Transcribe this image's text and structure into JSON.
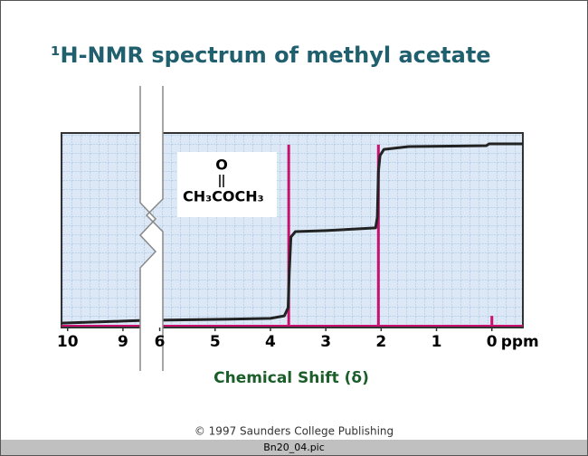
{
  "chart_data": {
    "type": "nmr",
    "title": "¹H-NMR spectrum of methyl acetate",
    "x_label": "Chemical Shift (δ)",
    "x_unit": "ppm",
    "annotation": {
      "top": "O",
      "formula": "CH₃COCH₃"
    },
    "xlim": [
      [
        10.11,
        8.58
      ],
      [
        6.13,
        -0.56
      ]
    ],
    "xticks": [
      10,
      9,
      6,
      5,
      4,
      3,
      2,
      1,
      0
    ],
    "ylim": [
      0,
      100
    ],
    "spectrum": {
      "color": "#c8106e",
      "x": [
        3.67,
        2.05,
        0
      ],
      "values": [
        94,
        94,
        6
      ]
    },
    "integral": {
      "color": "#222222",
      "x": [
        10.11,
        9.0,
        8.58,
        6.13,
        5.0,
        4.0,
        3.75,
        3.68,
        3.66,
        3.63,
        3.55,
        3.0,
        2.1,
        2.07,
        2.05,
        2.02,
        1.95,
        1.5,
        0.1,
        0.05,
        -0.56
      ],
      "values": [
        2.3,
        3.3,
        3.7,
        3.7,
        4.2,
        4.7,
        6,
        10.2,
        28.8,
        46.5,
        49.3,
        49.8,
        51.2,
        56.7,
        80,
        88.4,
        91.6,
        93,
        93.5,
        94.4,
        94.4
      ]
    }
  },
  "footer": {
    "copyright": "© 1997 Saunders College Publishing",
    "filename": "Bn20_04.pic"
  }
}
